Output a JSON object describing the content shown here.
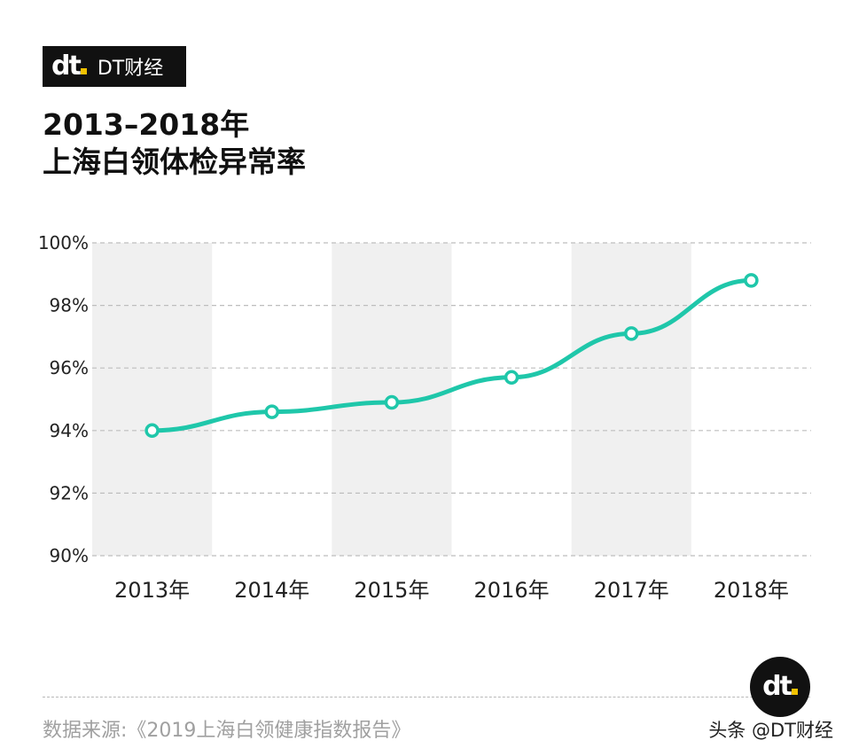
{
  "brand": {
    "mark": "dt",
    "name": "DT财经"
  },
  "title": {
    "line1": "2013–2018年",
    "line2": "上海白领体检异常率"
  },
  "chart_data": {
    "type": "line",
    "categories": [
      "2013年",
      "2014年",
      "2015年",
      "2016年",
      "2017年",
      "2018年"
    ],
    "series": [
      {
        "values": [
          94.0,
          94.6,
          94.9,
          95.7,
          97.1,
          98.8
        ]
      }
    ],
    "yticks": [
      "90%",
      "92%",
      "94%",
      "96%",
      "98%",
      "100%"
    ],
    "ylim": [
      90,
      100
    ],
    "grid": true,
    "alternating_column_bands": true,
    "line_color": "#1fc7aa",
    "band_color": "#f0f0f0",
    "grid_color": "#bdbdbd"
  },
  "footer": {
    "source": "数据来源:《2019上海白领健康指数报告》",
    "credit": "头条 @DT财经"
  }
}
